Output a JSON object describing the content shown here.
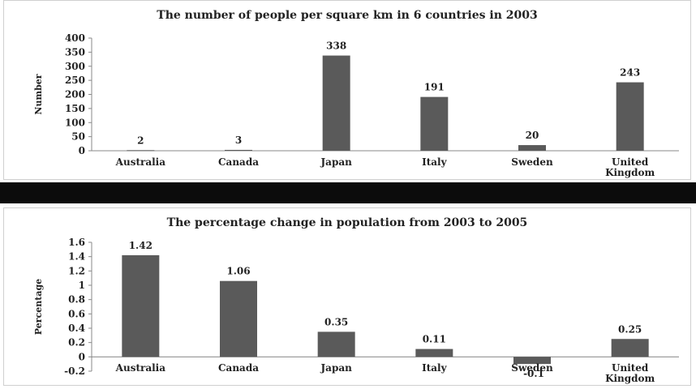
{
  "chart_data": [
    {
      "type": "bar",
      "title": "The number of people per square km in 6 countries in 2003",
      "xlabel": "",
      "ylabel": "Number",
      "categories": [
        "Australia",
        "Canada",
        "Japan",
        "Italy",
        "Sweden",
        "United Kingdom"
      ],
      "values": [
        2,
        3,
        338,
        191,
        20,
        243
      ],
      "value_labels": [
        "2",
        "3",
        "338",
        "191",
        "20",
        "243"
      ],
      "ylim": [
        0,
        400
      ],
      "yticks": [
        "0",
        "50",
        "100",
        "150",
        "200",
        "250",
        "300",
        "350",
        "400"
      ],
      "grid": false,
      "legend": "none",
      "bar_color": "#5a5a5a"
    },
    {
      "type": "bar",
      "title": "The percentage change in population from 2003 to 2005",
      "xlabel": "",
      "ylabel": "Percentage",
      "categories": [
        "Australia",
        "Canada",
        "Japan",
        "Italy",
        "Sweden",
        "United Kingdom"
      ],
      "values": [
        1.42,
        1.06,
        0.35,
        0.11,
        -0.1,
        0.25
      ],
      "value_labels": [
        "1.42",
        "1.06",
        "0.35",
        "0.11",
        "-0.1",
        "0.25"
      ],
      "ylim": [
        -0.2,
        1.6
      ],
      "yticks": [
        "-0.2",
        "0",
        "0.2",
        "0.4",
        "0.6",
        "0.8",
        "1",
        "1.2",
        "1.4",
        "1.6"
      ],
      "grid": false,
      "legend": "none",
      "bar_color": "#5a5a5a"
    }
  ]
}
